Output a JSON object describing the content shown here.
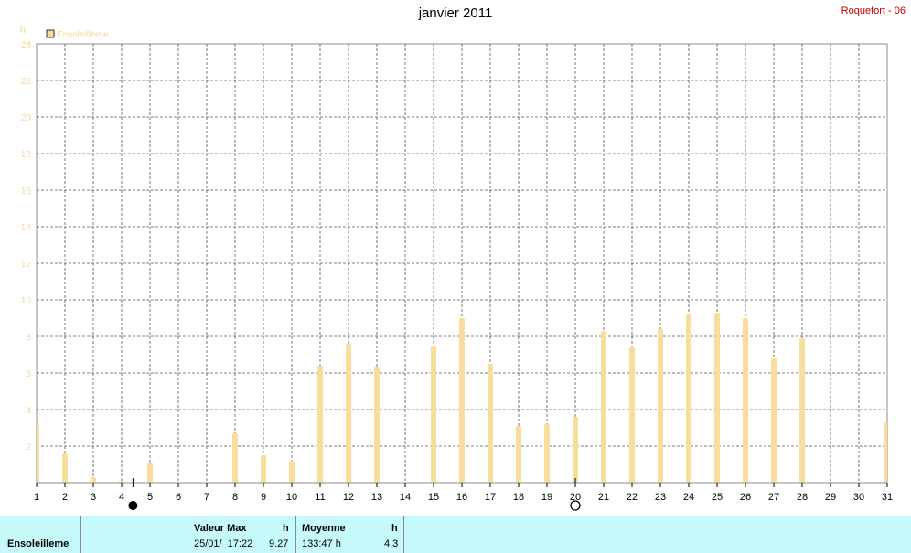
{
  "title": "janvier 2011",
  "station": "Roquefort - 06",
  "chart_data": {
    "type": "bar",
    "unit": "h",
    "legend": "Ensoleilleme",
    "legend_position": "top-left",
    "grid": true,
    "colors": {
      "bar": "#f9dd9d",
      "axis_labels": "#f5d79a",
      "grid": "#555555"
    },
    "categories": [
      "1",
      "2",
      "3",
      "4",
      "5",
      "6",
      "7",
      "8",
      "9",
      "10",
      "11",
      "12",
      "13",
      "14",
      "15",
      "16",
      "17",
      "18",
      "19",
      "20",
      "21",
      "22",
      "23",
      "24",
      "25",
      "26",
      "27",
      "28",
      "29",
      "30",
      "31"
    ],
    "values": [
      3.3,
      1.6,
      0.3,
      0.1,
      1.1,
      0.0,
      0.0,
      2.7,
      1.5,
      1.2,
      6.4,
      7.6,
      6.3,
      0.0,
      7.5,
      9.0,
      6.5,
      3.1,
      3.2,
      3.6,
      8.3,
      7.4,
      8.4,
      9.2,
      9.3,
      9.0,
      6.8,
      7.9,
      0.0,
      0.0,
      3.3
    ],
    "ylim": [
      0,
      24
    ],
    "yticks": [
      "0",
      "2",
      "4",
      "6",
      "8",
      "10",
      "12",
      "14",
      "16",
      "18",
      "20",
      "22",
      "24"
    ],
    "moon_markers": [
      {
        "day": 4.4,
        "icon": "new-moon-icon"
      },
      {
        "day": 20,
        "icon": "full-moon-icon"
      }
    ]
  },
  "footer": {
    "series_label": "Ensoleilleme",
    "max": {
      "label": "Valeur Max",
      "unit": "h",
      "date": "25/01/  17:22",
      "value": "9.27"
    },
    "mean": {
      "label": "Moyenne",
      "unit": "h",
      "total": "133:47 h",
      "value": "4.3"
    }
  }
}
